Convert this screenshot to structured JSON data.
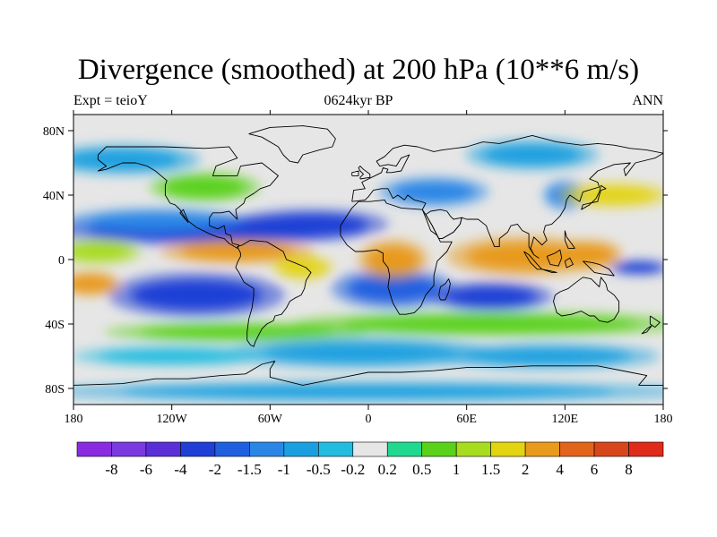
{
  "chart_data": {
    "type": "heatmap",
    "title": "Divergence (smoothed) at 200 hPa (10**6 m/s)",
    "subtitle_left": "Expt = teioY",
    "subtitle_center": "0624kyr BP",
    "subtitle_right": "ANN",
    "xlabel": "",
    "ylabel": "",
    "x_range": [
      -180,
      180
    ],
    "y_range": [
      -90,
      90
    ],
    "x_ticks": [
      {
        "value": -180,
        "label": "180"
      },
      {
        "value": -120,
        "label": "120W"
      },
      {
        "value": -60,
        "label": "60W"
      },
      {
        "value": 0,
        "label": "0"
      },
      {
        "value": 60,
        "label": "60E"
      },
      {
        "value": 120,
        "label": "120E"
      },
      {
        "value": 180,
        "label": "180"
      }
    ],
    "y_ticks": [
      {
        "value": 80,
        "label": "80N"
      },
      {
        "value": 40,
        "label": "40N"
      },
      {
        "value": 0,
        "label": "0"
      },
      {
        "value": -40,
        "label": "40S"
      },
      {
        "value": -80,
        "label": "80S"
      }
    ],
    "colorbar": {
      "levels": [
        "-8",
        "-6",
        "-4",
        "-2",
        "-1.5",
        "-1",
        "-0.5",
        "-0.2",
        "0.2",
        "0.5",
        "1",
        "1.5",
        "2",
        "4",
        "6",
        "8"
      ],
      "colors": [
        "#8a2be2",
        "#7a3ae0",
        "#5a2fd8",
        "#1f3fd6",
        "#2060e0",
        "#2a86e6",
        "#1aa0e0",
        "#22bce0",
        "#e6e6e6",
        "#20d890",
        "#5ad21a",
        "#a8dc1e",
        "#e3d412",
        "#e89a1c",
        "#e2641a",
        "#d8461c",
        "#e02a1a"
      ]
    },
    "field_blobs": [
      {
        "lon": -100,
        "lat": 18,
        "rx": 72,
        "ry": 6,
        "value": -3.0
      },
      {
        "lon": -35,
        "lat": 22,
        "rx": 35,
        "ry": 6,
        "value": -2.5
      },
      {
        "lon": -130,
        "lat": 24,
        "rx": 40,
        "ry": 5,
        "value": -1.5
      },
      {
        "lon": -105,
        "lat": -22,
        "rx": 40,
        "ry": 9,
        "value": -3.0
      },
      {
        "lon": 15,
        "lat": -18,
        "rx": 28,
        "ry": 8,
        "value": -2.0
      },
      {
        "lon": 75,
        "lat": -23,
        "rx": 28,
        "ry": 6,
        "value": -3.0
      },
      {
        "lon": 165,
        "lat": -5,
        "rx": 14,
        "ry": 3,
        "value": -2.5
      },
      {
        "lon": 40,
        "lat": 42,
        "rx": 25,
        "ry": 6,
        "value": -1.5
      },
      {
        "lon": 120,
        "lat": 40,
        "rx": 10,
        "ry": 6,
        "value": -1.5
      },
      {
        "lon": -150,
        "lat": 62,
        "rx": 35,
        "ry": 6,
        "value": -1.0
      },
      {
        "lon": 100,
        "lat": 65,
        "rx": 30,
        "ry": 6,
        "value": -1.0
      },
      {
        "lon": -80,
        "lat": 5,
        "rx": 35,
        "ry": 5,
        "value": 2.5
      },
      {
        "lon": -165,
        "lat": 5,
        "rx": 20,
        "ry": 5,
        "value": 1.2
      },
      {
        "lon": -170,
        "lat": -15,
        "rx": 14,
        "ry": 5,
        "value": 2.0
      },
      {
        "lon": -40,
        "lat": -5,
        "rx": 14,
        "ry": 5,
        "value": 1.5
      },
      {
        "lon": 15,
        "lat": 0,
        "rx": 16,
        "ry": 8,
        "value": 3.5
      },
      {
        "lon": 95,
        "lat": 2,
        "rx": 35,
        "ry": 8,
        "value": 3.5
      },
      {
        "lon": 135,
        "lat": 3,
        "rx": 15,
        "ry": 6,
        "value": 2.5
      },
      {
        "lon": 75,
        "lat": -40,
        "rx": 90,
        "ry": 5,
        "value": 0.8
      },
      {
        "lon": -80,
        "lat": -45,
        "rx": 60,
        "ry": 4,
        "value": 0.8
      },
      {
        "lon": 150,
        "lat": 40,
        "rx": 25,
        "ry": 5,
        "value": 1.5
      },
      {
        "lon": -100,
        "lat": 45,
        "rx": 25,
        "ry": 6,
        "value": 0.6
      },
      {
        "lon": -5,
        "lat": -58,
        "rx": 60,
        "ry": 6,
        "value": -0.8
      },
      {
        "lon": 110,
        "lat": -60,
        "rx": 50,
        "ry": 5,
        "value": -0.8
      },
      {
        "lon": -120,
        "lat": -60,
        "rx": 45,
        "ry": 4,
        "value": -0.5
      },
      {
        "lon": 0,
        "lat": -82,
        "rx": 150,
        "ry": 4,
        "value": -0.6
      }
    ]
  }
}
